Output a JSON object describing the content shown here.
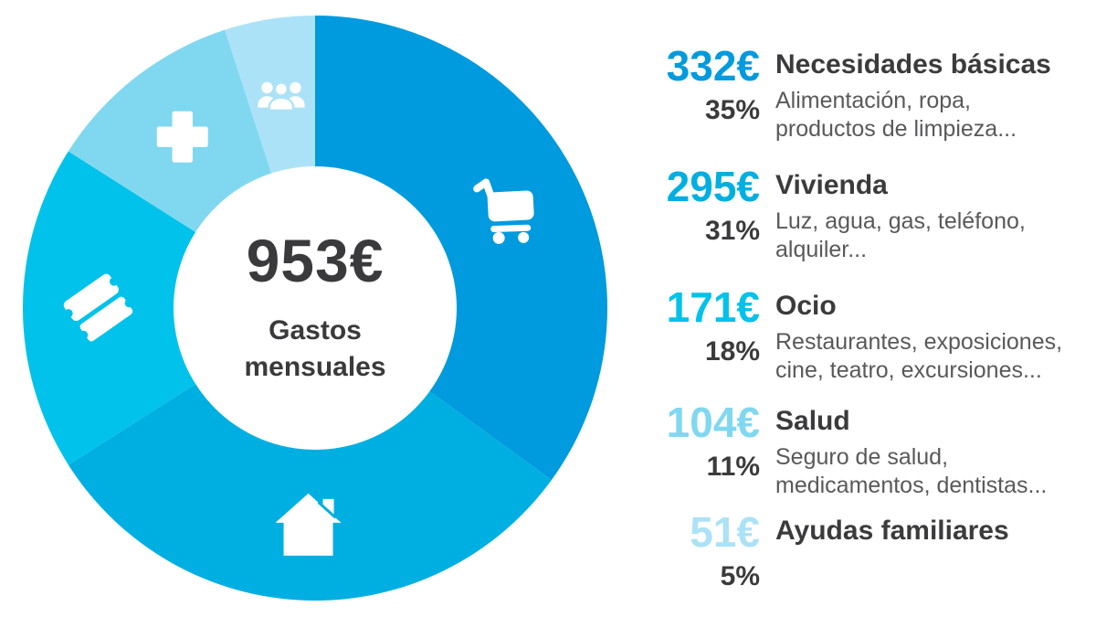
{
  "chart_data": {
    "type": "pie",
    "subtype": "donut",
    "title": "Gastos mensuales",
    "center": {
      "amount": "953€",
      "label": "Gastos mensuales",
      "total_value": 953
    },
    "currency": "€",
    "legend_position": "right",
    "icon_color": "#ffffff",
    "start_angle_deg": 0,
    "direction": "clockwise",
    "segments": [
      {
        "label": "Necesidades básicas",
        "value": 332,
        "amount_label": "332€",
        "percent": 35,
        "percent_label": "35%",
        "color": "#009ade",
        "icon": "shopping-cart-icon",
        "description": "Alimentación, ropa,\nproductos de limpieza..."
      },
      {
        "label": "Vivienda",
        "value": 295,
        "amount_label": "295€",
        "percent": 31,
        "percent_label": "31%",
        "color": "#00afe1",
        "icon": "house-icon",
        "description": "Luz, agua, gas, teléfono,\nalquiler..."
      },
      {
        "label": "Ocio",
        "value": 171,
        "amount_label": "171€",
        "percent": 18,
        "percent_label": "18%",
        "color": "#00c2ea",
        "icon": "tickets-icon",
        "description": "Restaurantes, exposiciones,\ncine, teatro, excursiones..."
      },
      {
        "label": "Salud",
        "value": 104,
        "amount_label": "104€",
        "percent": 11,
        "percent_label": "11%",
        "color": "#7fd8f0",
        "icon": "medical-cross-icon",
        "description": "Seguro de salud,\nmedicamentos, dentistas..."
      },
      {
        "label": "Ayudas familiares",
        "value": 51,
        "amount_label": "51€",
        "percent": 5,
        "percent_label": "5%",
        "color": "#ace2f7",
        "icon": "family-icon",
        "description": ""
      }
    ]
  }
}
